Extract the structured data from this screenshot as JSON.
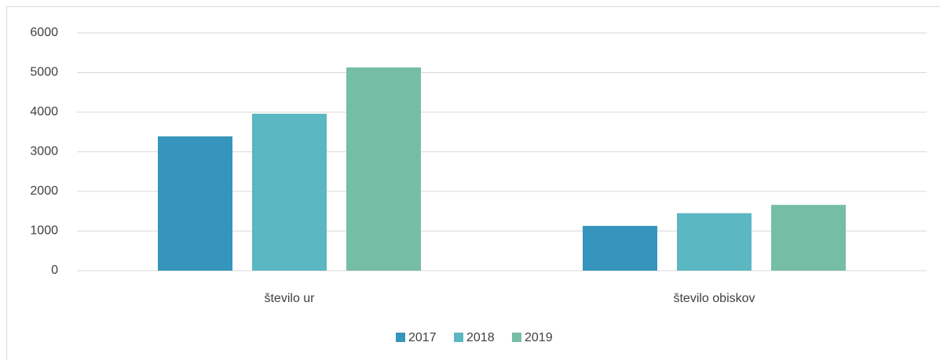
{
  "chart_data": {
    "type": "bar",
    "categories": [
      "število ur",
      "število obiskov"
    ],
    "series": [
      {
        "name": "2017",
        "color": "#3595bc",
        "values": [
          3390,
          1130
        ]
      },
      {
        "name": "2018",
        "color": "#5bb7c1",
        "values": [
          3960,
          1450
        ]
      },
      {
        "name": "2019",
        "color": "#75bea5",
        "values": [
          5130,
          1660
        ]
      }
    ],
    "ylim": [
      0,
      6000
    ],
    "yticks": [
      0,
      1000,
      2000,
      3000,
      4000,
      5000,
      6000
    ],
    "grid": true,
    "legend": "bottom"
  }
}
